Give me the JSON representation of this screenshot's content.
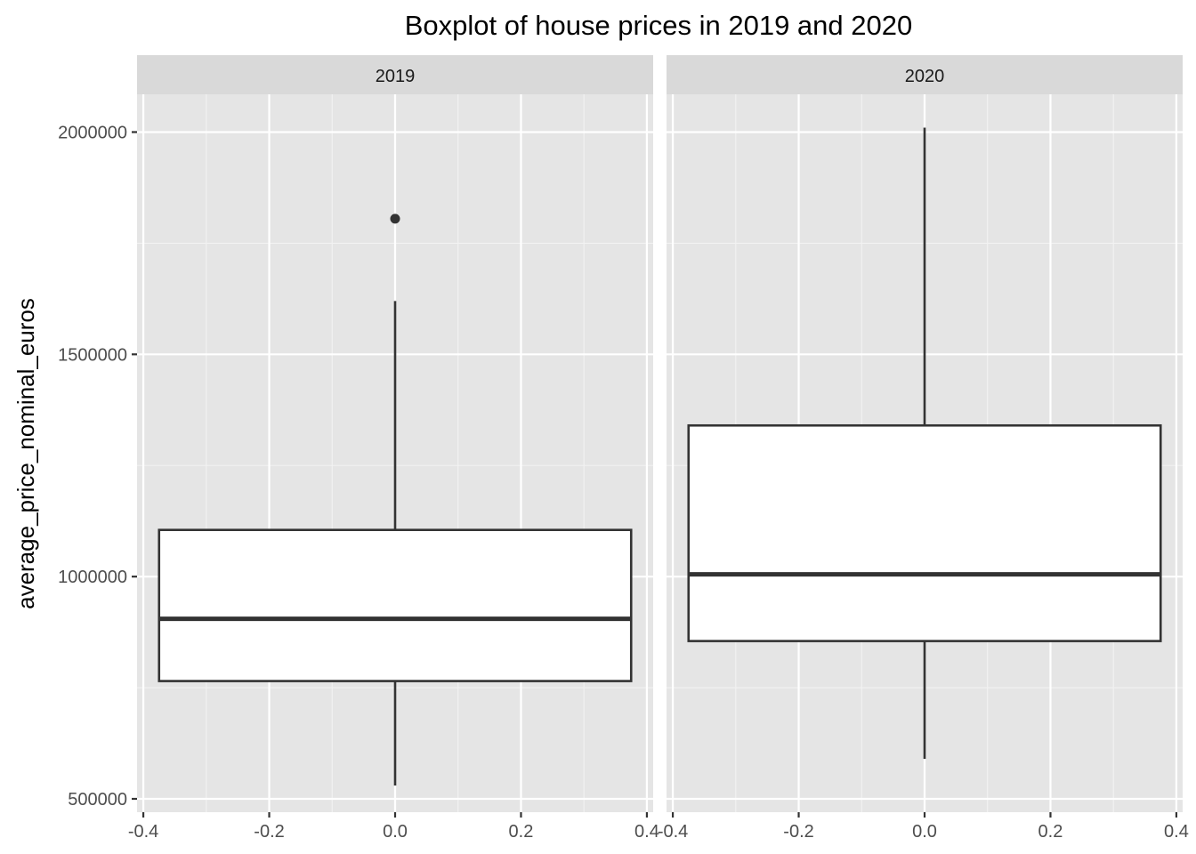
{
  "chart_data": {
    "type": "boxplot",
    "title": "Boxplot of house prices in 2019 and 2020",
    "xlabel": "",
    "ylabel": "average_price_nominal_euros",
    "ylim": [
      470000,
      2085000
    ],
    "xlim": [
      -0.41,
      0.41
    ],
    "y_ticks": [
      500000,
      1000000,
      1500000,
      2000000
    ],
    "y_tick_labels": [
      "500000",
      "1000000",
      "1500000",
      "2000000"
    ],
    "x_ticks": [
      -0.4,
      -0.2,
      0.0,
      0.2,
      0.4
    ],
    "x_tick_labels": [
      "-0.4",
      "-0.2",
      "0.0",
      "0.2",
      "0.4"
    ],
    "grid": true,
    "facets": [
      {
        "label": "2019",
        "box": {
          "x_min": -0.375,
          "x_max": 0.375,
          "lower_whisker": 530000,
          "q1": 765000,
          "median": 905000,
          "q3": 1105000,
          "upper_whisker": 1620000,
          "outliers": [
            1805000
          ]
        }
      },
      {
        "label": "2020",
        "box": {
          "x_min": -0.375,
          "x_max": 0.375,
          "lower_whisker": 590000,
          "q1": 855000,
          "median": 1005000,
          "q3": 1340000,
          "upper_whisker": 2010000,
          "outliers": []
        }
      }
    ]
  }
}
